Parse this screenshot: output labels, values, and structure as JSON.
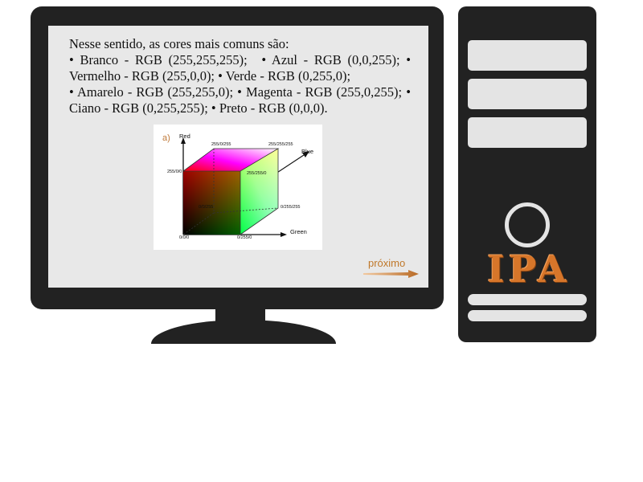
{
  "slide": {
    "intro": "Nesse sentido, as cores mais comuns são:",
    "colors": [
      "• Branco - RGB (255,255,255);",
      "• Azul - RGB (0,0,255);",
      "• Vermelho - RGB (255,0,0);",
      "• Verde - RGB (0,255,0);",
      "• Amarelo - RGB (255,255,0);",
      "• Magenta - RGB (255,0,255);",
      "• Ciano - RGB (0,255,255);",
      "• Preto - RGB (0,0,0)."
    ],
    "figure": {
      "panel_label": "a)",
      "axis_red": "Red",
      "axis_blue": "Blue",
      "axis_green": "Green",
      "corners": {
        "origin": "0/0/0",
        "red": "255/0/0",
        "magenta": "255/0/255",
        "white": "255/255/255",
        "yellow": "255/255/0",
        "cyan": "0/255/255",
        "green": "0/255/0",
        "blue": "0/0/255"
      }
    },
    "next_label": "próximo"
  },
  "tower": {
    "brand": "IPA"
  },
  "colors": {
    "accent": "#c0782a",
    "brand": "#d7762a",
    "device_body": "#222222",
    "screen_bg": "#e8e8e8",
    "bay": "#e4e4e4"
  }
}
